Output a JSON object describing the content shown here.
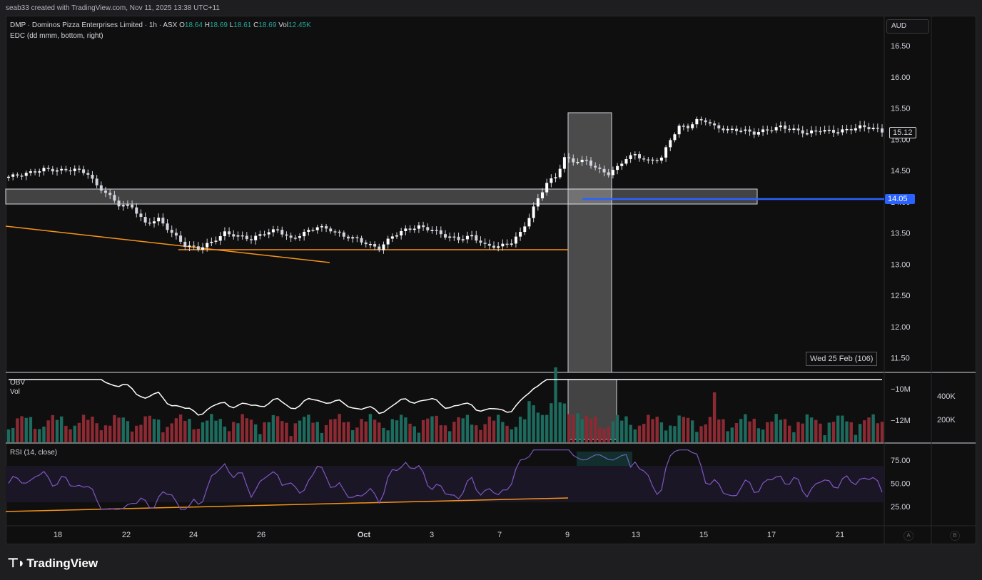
{
  "header": {
    "credit": "seab33 created with TradingView.com, Nov 11, 2025 13:38 UTC+11"
  },
  "symbol": {
    "label": "DMP · Dominos Pizza Enterprises Limited · 1h · ASX",
    "o_label": "O",
    "o": "18.64",
    "h_label": "H",
    "h": "18.69",
    "l_label": "L",
    "l": "18.61",
    "c_label": "C",
    "c": "18.69",
    "vol_label": "Vol",
    "vol": "12.45K"
  },
  "indicator_line": "EDC (dd mmm, bottom, right)",
  "currency": "AUD",
  "price_axis": [
    "16.50",
    "16.00",
    "15.50",
    "15.00",
    "14.50",
    "14.00",
    "13.50",
    "13.00",
    "12.50",
    "12.00",
    "11.50"
  ],
  "last_price": "15.12",
  "level_price": "14.05",
  "cursor_date": "Wed 25 Feb (106)",
  "obv": {
    "label": "OBV",
    "vol_label": "Vol",
    "axis": [
      "−10M",
      "−12M"
    ],
    "vol_axis": [
      "400K",
      "200K"
    ]
  },
  "rsi": {
    "label": "RSI (14, close)",
    "axis": [
      "75.00",
      "50.00",
      "25.00"
    ]
  },
  "time_axis": [
    "18",
    "22",
    "24",
    "26",
    "Oct",
    "3",
    "7",
    "9",
    "13",
    "15",
    "17",
    "21"
  ],
  "axis_buttons": [
    "A",
    "B"
  ],
  "brand": "TradingView",
  "colors": {
    "up": "#ffffff",
    "down": "#ffffff",
    "orange": "#f7931a",
    "blue": "#2962ff",
    "volUp": "#1d6b5e",
    "volDown": "#8c2a33",
    "rsi": "#7e57c2",
    "obv": "#ffffff"
  }
}
